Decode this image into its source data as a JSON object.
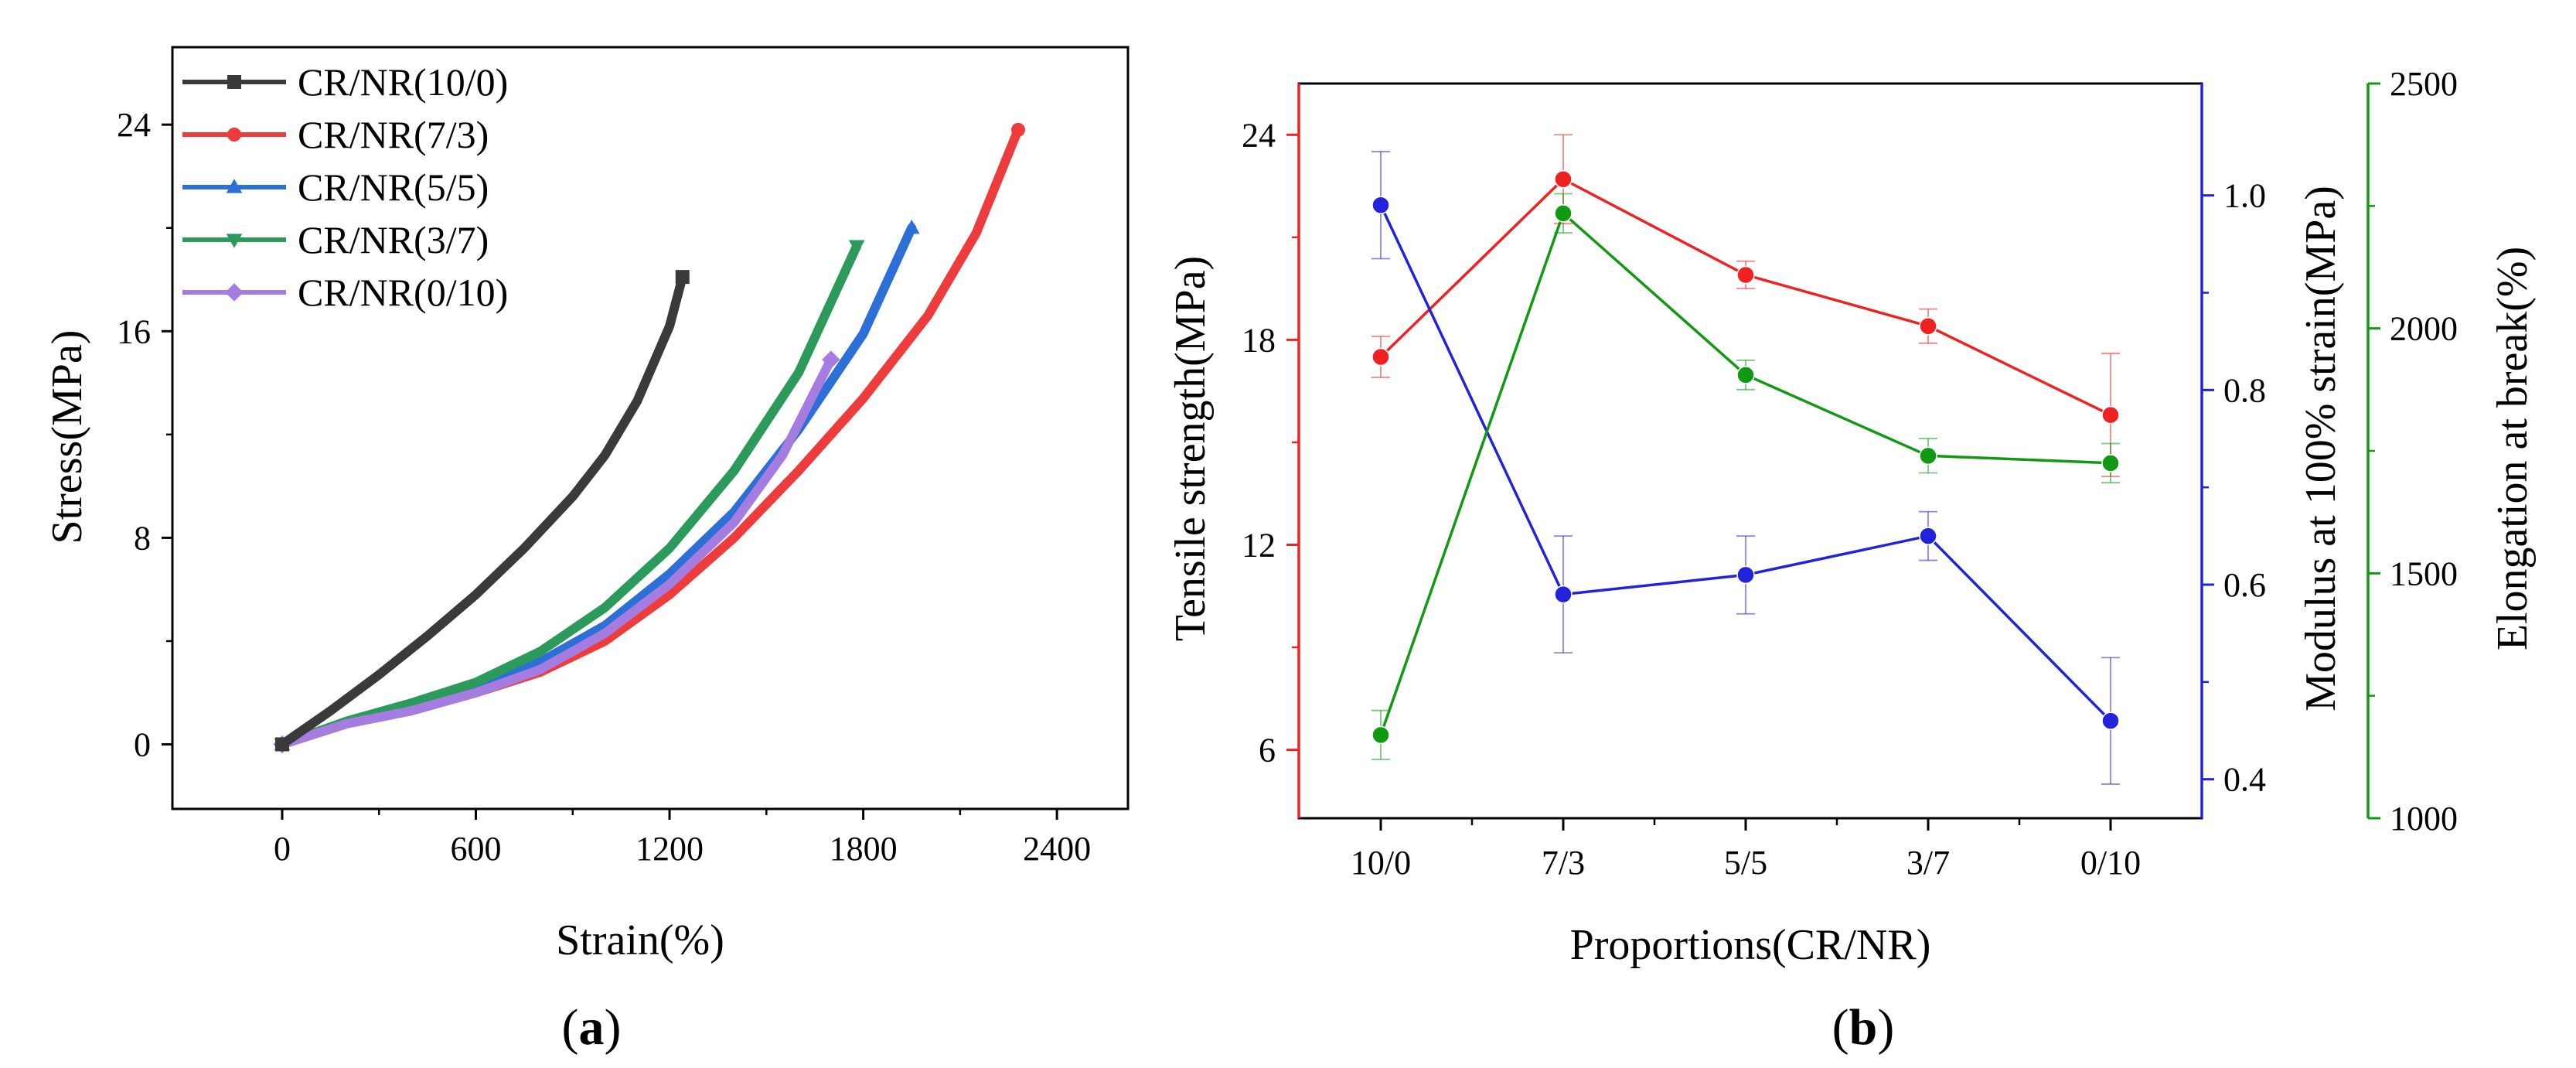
{
  "panels": {
    "a": {
      "label_open": "(",
      "label_letter": "a",
      "label_close": ")"
    },
    "b": {
      "label_open": "(",
      "label_letter": "b",
      "label_close": ")"
    }
  },
  "chart_data": [
    {
      "id": "a",
      "type": "line",
      "title": "",
      "xlabel": "Strain(%)",
      "ylabel": "Stress(MPa)",
      "xlim": [
        -340,
        2620
      ],
      "ylim": [
        -2.5,
        27
      ],
      "xticks": [
        0,
        600,
        1200,
        1800,
        2400
      ],
      "yticks": [
        0,
        8,
        16,
        24
      ],
      "legend_position": "top-left",
      "series": [
        {
          "name": "CR/NR(10/0)",
          "color": "#3a3a3a",
          "marker": "square",
          "points": [
            [
              0,
              0
            ],
            [
              150,
              1.3
            ],
            [
              300,
              2.7
            ],
            [
              450,
              4.2
            ],
            [
              600,
              5.8
            ],
            [
              750,
              7.6
            ],
            [
              900,
              9.6
            ],
            [
              1000,
              11.2
            ],
            [
              1100,
              13.3
            ],
            [
              1200,
              16.2
            ],
            [
              1240,
              18.1
            ]
          ]
        },
        {
          "name": "CR/NR(7/3)",
          "color": "#ee3b3b",
          "marker": "circle",
          "points": [
            [
              0,
              0
            ],
            [
              200,
              0.8
            ],
            [
              400,
              1.3
            ],
            [
              600,
              2.0
            ],
            [
              800,
              2.8
            ],
            [
              1000,
              4.0
            ],
            [
              1200,
              5.8
            ],
            [
              1400,
              8.0
            ],
            [
              1600,
              10.6
            ],
            [
              1800,
              13.4
            ],
            [
              2000,
              16.6
            ],
            [
              2150,
              19.8
            ],
            [
              2280,
              23.8
            ]
          ]
        },
        {
          "name": "CR/NR(5/5)",
          "color": "#2c6fd6",
          "marker": "triangle-up",
          "points": [
            [
              0,
              0
            ],
            [
              200,
              0.8
            ],
            [
              400,
              1.4
            ],
            [
              600,
              2.2
            ],
            [
              800,
              3.2
            ],
            [
              1000,
              4.6
            ],
            [
              1200,
              6.6
            ],
            [
              1400,
              9.0
            ],
            [
              1600,
              12.2
            ],
            [
              1800,
              15.9
            ],
            [
              1950,
              20.0
            ]
          ]
        },
        {
          "name": "CR/NR(3/7)",
          "color": "#2b9a5a",
          "marker": "triangle-down",
          "points": [
            [
              0,
              0
            ],
            [
              200,
              0.9
            ],
            [
              400,
              1.6
            ],
            [
              600,
              2.4
            ],
            [
              800,
              3.6
            ],
            [
              1000,
              5.3
            ],
            [
              1200,
              7.6
            ],
            [
              1400,
              10.6
            ],
            [
              1600,
              14.4
            ],
            [
              1780,
              19.3
            ]
          ]
        },
        {
          "name": "CR/NR(0/10)",
          "color": "#a57de0",
          "marker": "diamond",
          "points": [
            [
              0,
              0
            ],
            [
              200,
              0.8
            ],
            [
              400,
              1.3
            ],
            [
              600,
              2.0
            ],
            [
              800,
              2.9
            ],
            [
              1000,
              4.3
            ],
            [
              1200,
              6.2
            ],
            [
              1400,
              8.6
            ],
            [
              1550,
              11.2
            ],
            [
              1700,
              14.9
            ]
          ]
        }
      ]
    },
    {
      "id": "b",
      "type": "line",
      "title": "",
      "xlabel": "Proportions(CR/NR)",
      "categories": [
        "10/0",
        "7/3",
        "5/5",
        "3/7",
        "0/10"
      ],
      "axes": {
        "left": {
          "label": "Tensile strength(MPa)",
          "color": "#ee2222",
          "ylim": [
            4,
            25.5
          ],
          "ticks": [
            6,
            12,
            18,
            24
          ]
        },
        "right1": {
          "label": "Modulus at 100% strain(MPa)",
          "color": "#2222dd",
          "ylim": [
            0.36,
            1.115
          ],
          "ticks": [
            0.4,
            0.6,
            0.8,
            1.0
          ],
          "tick_labels": [
            "0.4",
            "0.6",
            "0.8",
            "1.0"
          ]
        },
        "right2": {
          "label": "Elongation at break(%)",
          "color": "#119911",
          "ylim": [
            1000,
            2500
          ],
          "ticks": [
            1000,
            1500,
            2000,
            2500
          ]
        }
      },
      "series": [
        {
          "name": "Tensile strength",
          "axis": "left",
          "color": "#ee2222",
          "values": [
            17.5,
            22.7,
            19.9,
            18.4,
            15.8
          ],
          "errors": [
            0.6,
            1.3,
            0.4,
            0.5,
            1.8
          ]
        },
        {
          "name": "Modulus at 100% strain",
          "axis": "right1",
          "color": "#2222dd",
          "values": [
            0.99,
            0.59,
            0.61,
            0.65,
            0.46
          ],
          "errors": [
            0.055,
            0.06,
            0.04,
            0.025,
            0.065
          ]
        },
        {
          "name": "Elongation at break",
          "axis": "right2",
          "color": "#119911",
          "values": [
            1170,
            2235,
            1905,
            1740,
            1725
          ],
          "errors": [
            50,
            40,
            30,
            35,
            40
          ]
        }
      ]
    }
  ]
}
